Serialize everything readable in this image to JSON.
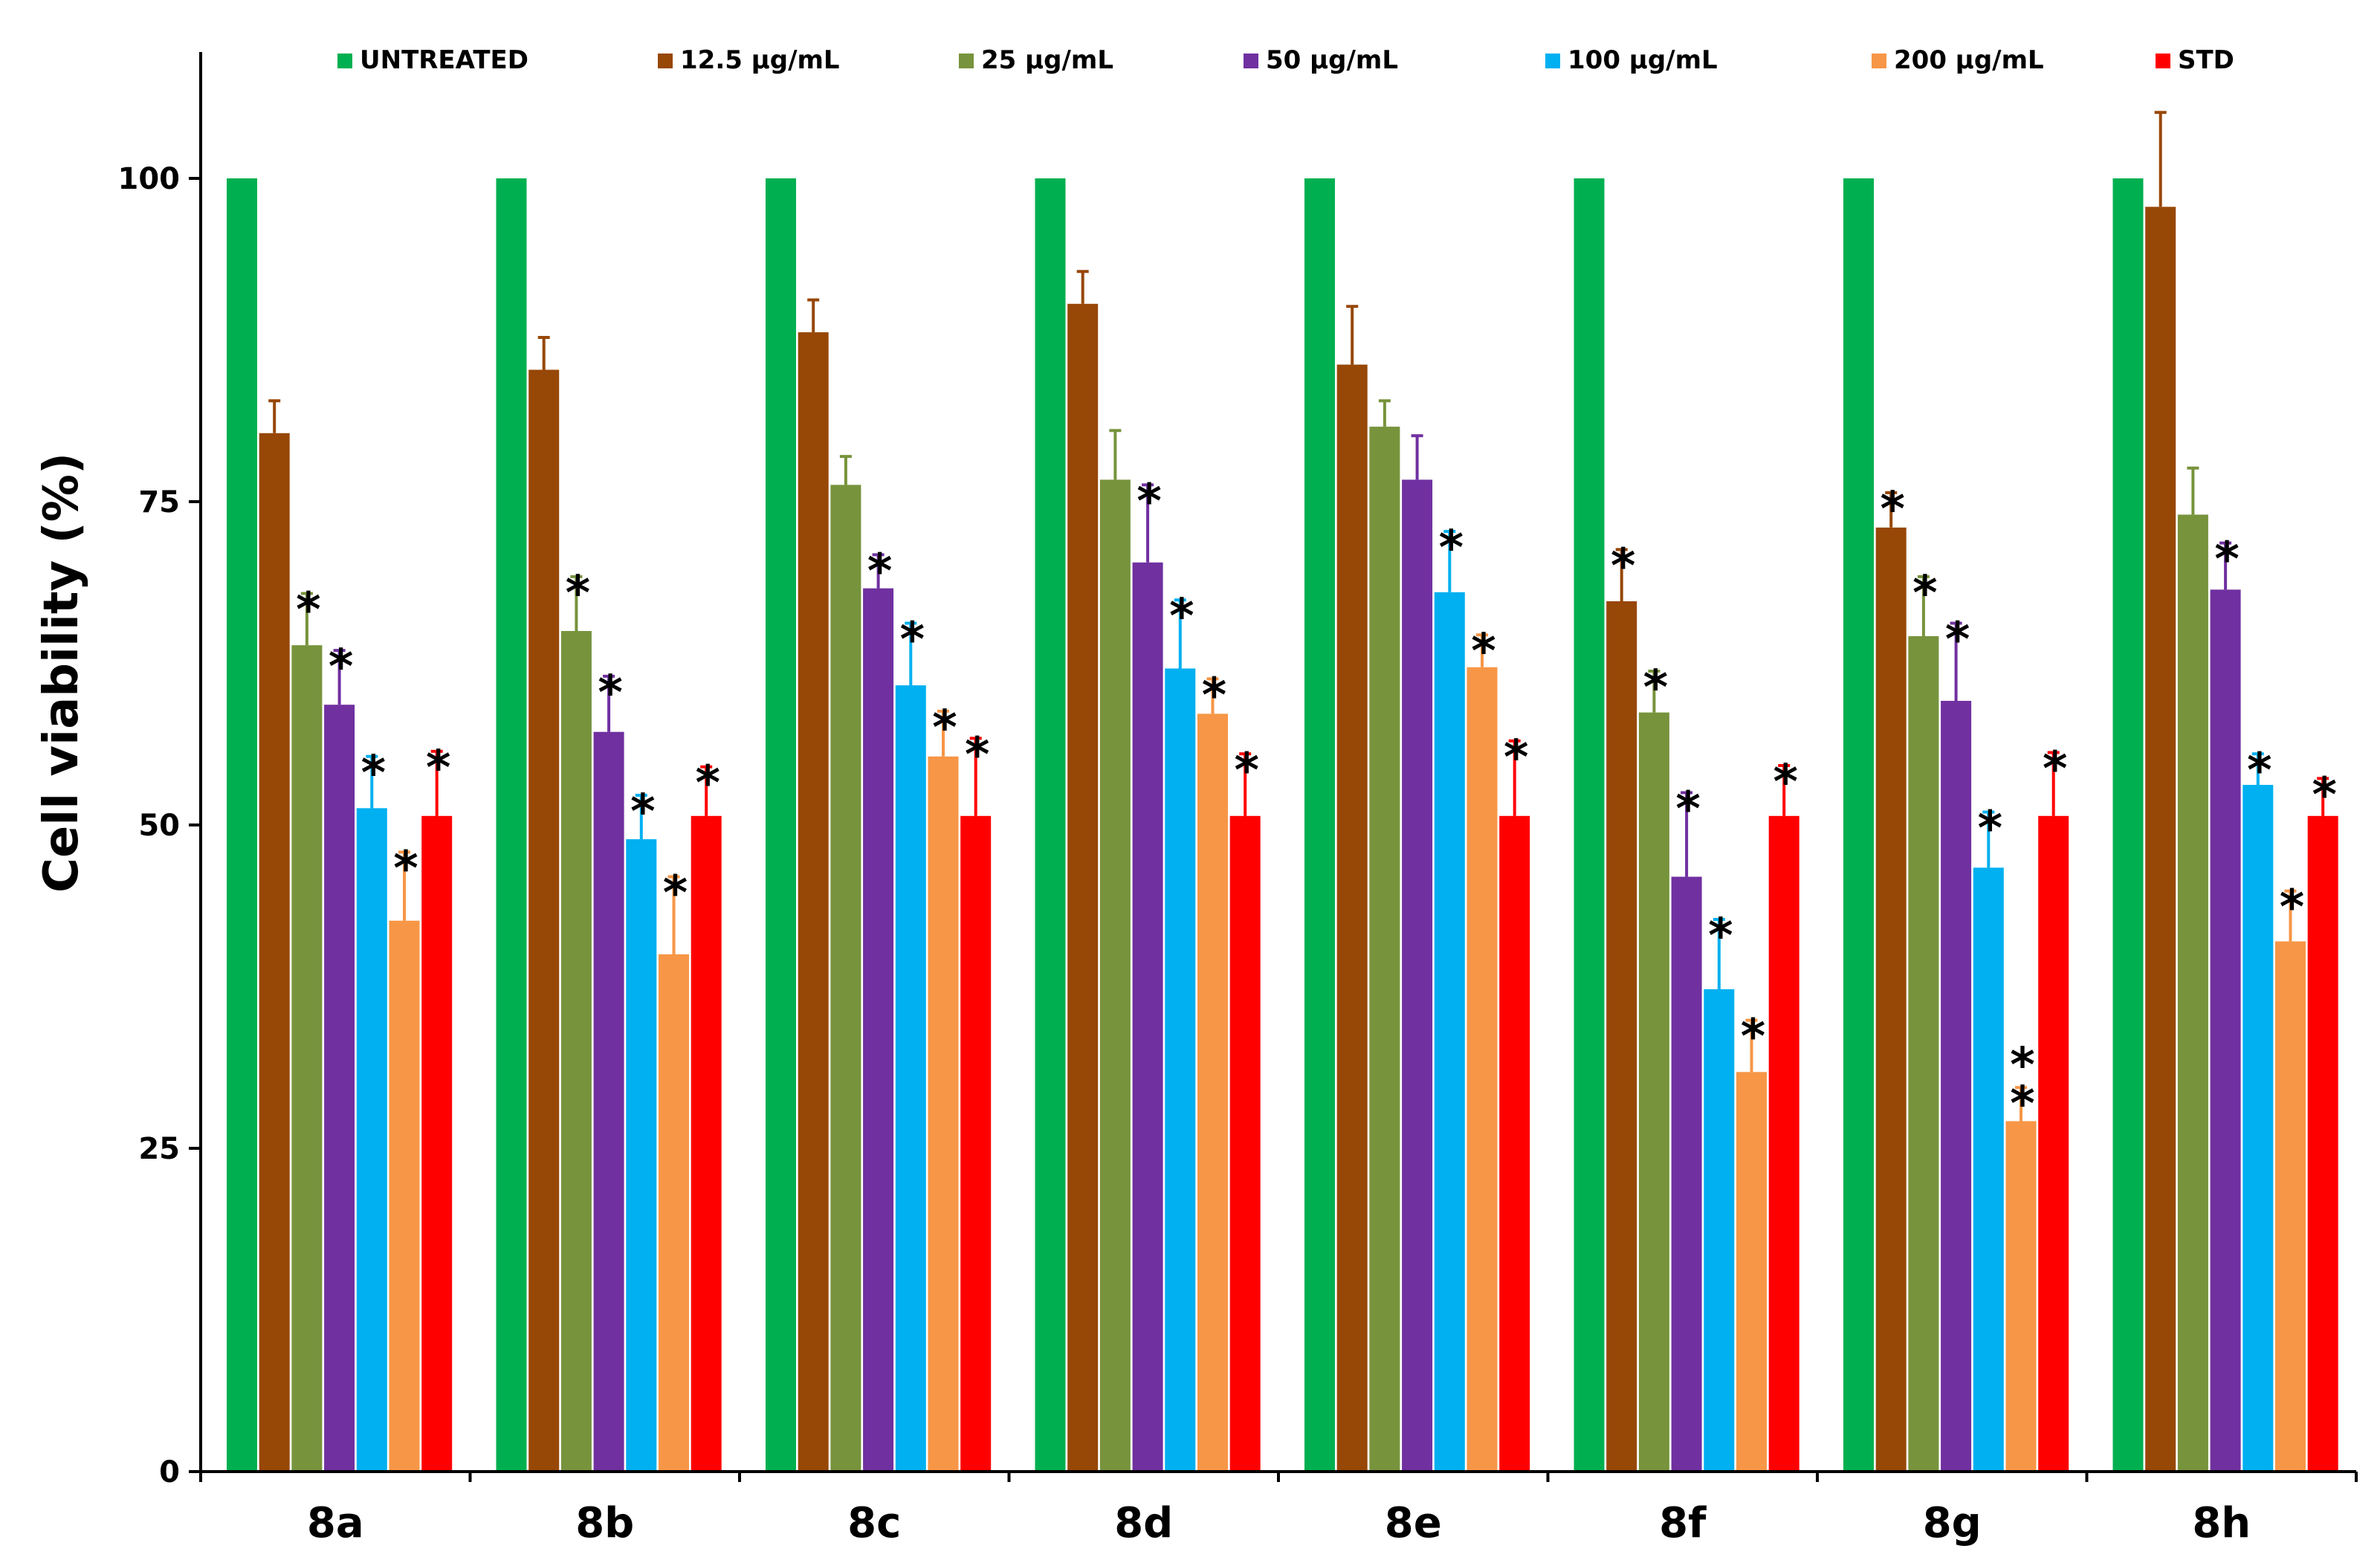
{
  "chart_data": {
    "type": "bar",
    "title": "",
    "xlabel": "",
    "ylabel": "Cell viability (%)",
    "ylim": [
      0,
      110
    ],
    "yticks": [
      0,
      25,
      50,
      75,
      100
    ],
    "grid": false,
    "legend_position": "top",
    "categories": [
      "8a",
      "8b",
      "8c",
      "8d",
      "8e",
      "8f",
      "8g",
      "8h"
    ],
    "series": [
      {
        "name": "UNTREATED",
        "color": "#00b050",
        "values": [
          100,
          100,
          100,
          100,
          100,
          100,
          100,
          100
        ],
        "errors": [
          0,
          0,
          0,
          0,
          0,
          0,
          0,
          0
        ],
        "marks": [
          "",
          "",
          "",
          "",
          "",
          "",
          "",
          ""
        ]
      },
      {
        "name": "12.5 µg/mL",
        "color": "#974706",
        "values": [
          80.3,
          85.2,
          88.1,
          90.3,
          85.6,
          67.3,
          73.0,
          97.8
        ],
        "errors": [
          2.5,
          2.5,
          2.5,
          2.5,
          4.5,
          4.0,
          2.7,
          7.3
        ],
        "marks": [
          "",
          "",
          "",
          "",
          "",
          "*",
          "*",
          ""
        ]
      },
      {
        "name": "25 µg/mL",
        "color": "#77933c",
        "values": [
          63.9,
          65.0,
          76.3,
          76.7,
          80.8,
          58.7,
          64.6,
          74.0
        ],
        "errors": [
          4.0,
          4.2,
          2.2,
          3.8,
          2.0,
          3.2,
          4.6,
          3.6
        ],
        "marks": [
          "*",
          "*",
          "",
          "",
          "",
          "*",
          "*",
          ""
        ]
      },
      {
        "name": "50 µg/mL",
        "color": "#7030a0",
        "values": [
          59.3,
          57.2,
          68.3,
          70.3,
          76.7,
          46.0,
          59.6,
          68.2
        ],
        "errors": [
          4.2,
          4.3,
          2.6,
          6.0,
          3.4,
          6.5,
          6.0,
          3.6
        ],
        "marks": [
          "*",
          "*",
          "*",
          "*",
          "",
          "*",
          "*",
          "*"
        ]
      },
      {
        "name": "100 µg/mL",
        "color": "#00b0f0",
        "values": [
          51.3,
          48.9,
          60.8,
          62.1,
          68.0,
          37.3,
          46.7,
          53.1
        ],
        "errors": [
          4.0,
          3.4,
          4.8,
          5.3,
          4.7,
          5.4,
          4.3,
          2.4
        ],
        "marks": [
          "*",
          "*",
          "*",
          "*",
          "*",
          "*",
          "*",
          "*"
        ]
      },
      {
        "name": "200 µg/mL",
        "color": "#f79646",
        "values": [
          42.6,
          40.0,
          55.3,
          58.6,
          62.2,
          30.9,
          27.1,
          41.0
        ],
        "errors": [
          5.3,
          6.0,
          3.5,
          2.7,
          2.5,
          4.0,
          2.6,
          3.9
        ],
        "marks": [
          "*",
          "*",
          "*",
          "*",
          "*",
          "*",
          "**",
          "*"
        ]
      },
      {
        "name": "STD",
        "color": "#ff0000",
        "values": [
          50.7,
          50.7,
          50.7,
          50.7,
          50.7,
          50.7,
          50.7,
          50.7
        ],
        "errors": [
          5.0,
          3.8,
          6.0,
          4.8,
          5.8,
          3.9,
          4.9,
          2.9
        ],
        "marks": [
          "*",
          "*",
          "*",
          "*",
          "*",
          "*",
          "*",
          "*"
        ]
      }
    ]
  }
}
